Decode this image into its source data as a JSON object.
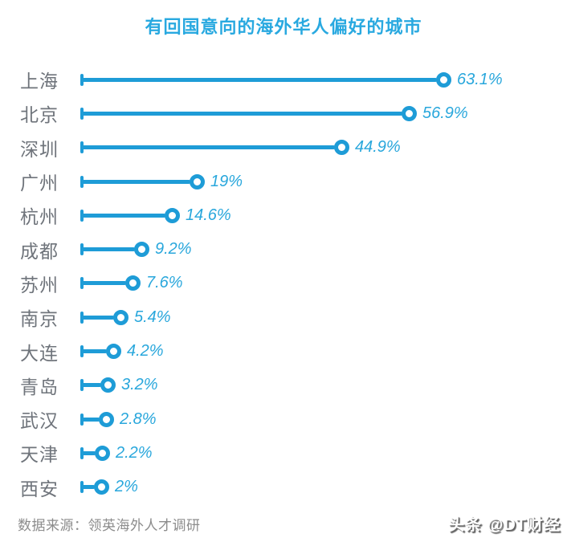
{
  "title": "有回国意向的海外华人偏好的城市",
  "source": "数据来源：领英海外人才调研",
  "watermark": "头条 @DT财经",
  "colors": {
    "accent": "#1E9CD7",
    "title": "#29A9E0",
    "value_text": "#29A7DC",
    "category_text": "#6F747B",
    "source_text": "#8C8C8C"
  },
  "chart_data": {
    "type": "bar",
    "subtype": "horizontal-lollipop",
    "title": "有回国意向的海外华人偏好的城市",
    "xlabel": "",
    "ylabel": "",
    "xlim": [
      0,
      70
    ],
    "grid": false,
    "legend": false,
    "categories": [
      "上海",
      "北京",
      "深圳",
      "广州",
      "杭州",
      "成都",
      "苏州",
      "南京",
      "大连",
      "青岛",
      "武汉",
      "天津",
      "西安"
    ],
    "values": [
      63.1,
      56.9,
      44.9,
      19,
      14.6,
      9.2,
      7.6,
      5.4,
      4.2,
      3.2,
      2.8,
      2.2,
      2
    ],
    "value_labels": [
      "63.1%",
      "56.9%",
      "44.9%",
      "19%",
      "14.6%",
      "9.2%",
      "7.6%",
      "5.4%",
      "4.2%",
      "3.2%",
      "2.8%",
      "2.2%",
      "2%"
    ]
  }
}
